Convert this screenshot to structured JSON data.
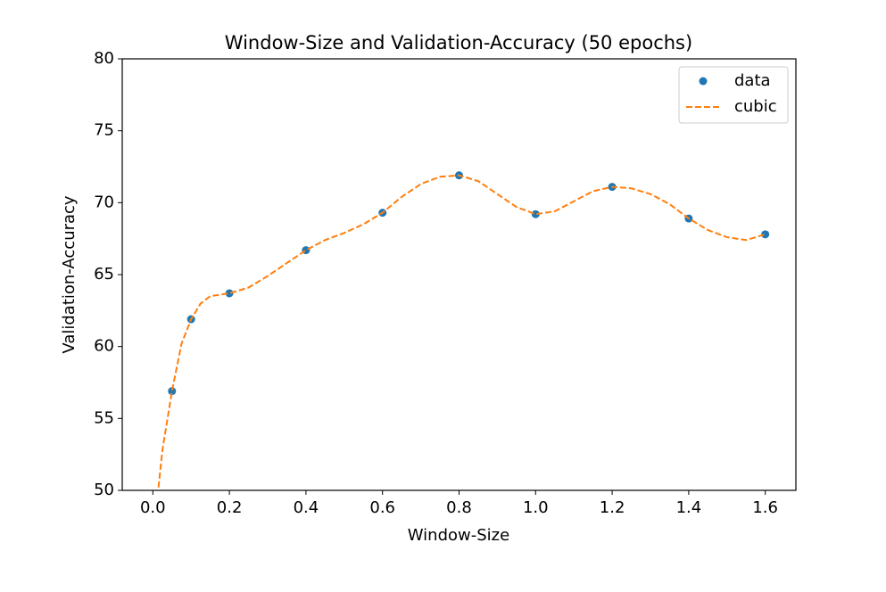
{
  "chart_data": {
    "type": "line",
    "title": "Window-Size and Validation-Accuracy (50 epochs)",
    "x_label": "Window-Size",
    "y_label": "Validation-Accuracy",
    "xlim": [
      -0.08,
      1.68
    ],
    "xticks": [
      {
        "value": 0,
        "label": "0.0"
      },
      0.2,
      0.4,
      0.6,
      0.8,
      {
        "value": 1,
        "label": "1.0"
      },
      1.2,
      1.4,
      1.6
    ],
    "ylim": [
      50,
      80
    ],
    "yticks": [
      50,
      55,
      60,
      65,
      70,
      75,
      80
    ],
    "legend": "upper right",
    "series": [
      {
        "name": "data",
        "color": "#1f77b4",
        "style": "markers",
        "x": [
          0.05,
          0.1,
          0.2,
          0.4,
          0.6,
          0.8,
          1.0,
          1.2,
          1.4,
          1.6
        ],
        "values": [
          56.9,
          61.9,
          63.7,
          66.7,
          69.3,
          71.9,
          69.2,
          71.1,
          68.9,
          67.8
        ]
      },
      {
        "name": "cubic",
        "color": "#ff7f0e",
        "style": "dashed",
        "x": [
          0,
          0.025,
          0.05,
          0.075,
          0.1,
          0.125,
          0.15,
          0.2,
          0.25,
          0.3,
          0.35,
          0.4,
          0.45,
          0.5,
          0.55,
          0.6,
          0.65,
          0.7,
          0.75,
          0.8,
          0.85,
          0.9,
          0.95,
          1.0,
          1.05,
          1.1,
          1.15,
          1.2,
          1.25,
          1.3,
          1.35,
          1.4,
          1.45,
          1.5,
          1.55,
          1.6
        ],
        "values": [
          46.5,
          52.8,
          56.9,
          60.2,
          61.9,
          63.0,
          63.5,
          63.7,
          64.1,
          64.9,
          65.8,
          66.7,
          67.4,
          67.9,
          68.5,
          69.3,
          70.4,
          71.3,
          71.8,
          71.9,
          71.5,
          70.6,
          69.7,
          69.2,
          69.4,
          70.1,
          70.8,
          71.1,
          71.0,
          70.6,
          69.9,
          68.9,
          68.1,
          67.6,
          67.4,
          67.8
        ]
      }
    ]
  }
}
